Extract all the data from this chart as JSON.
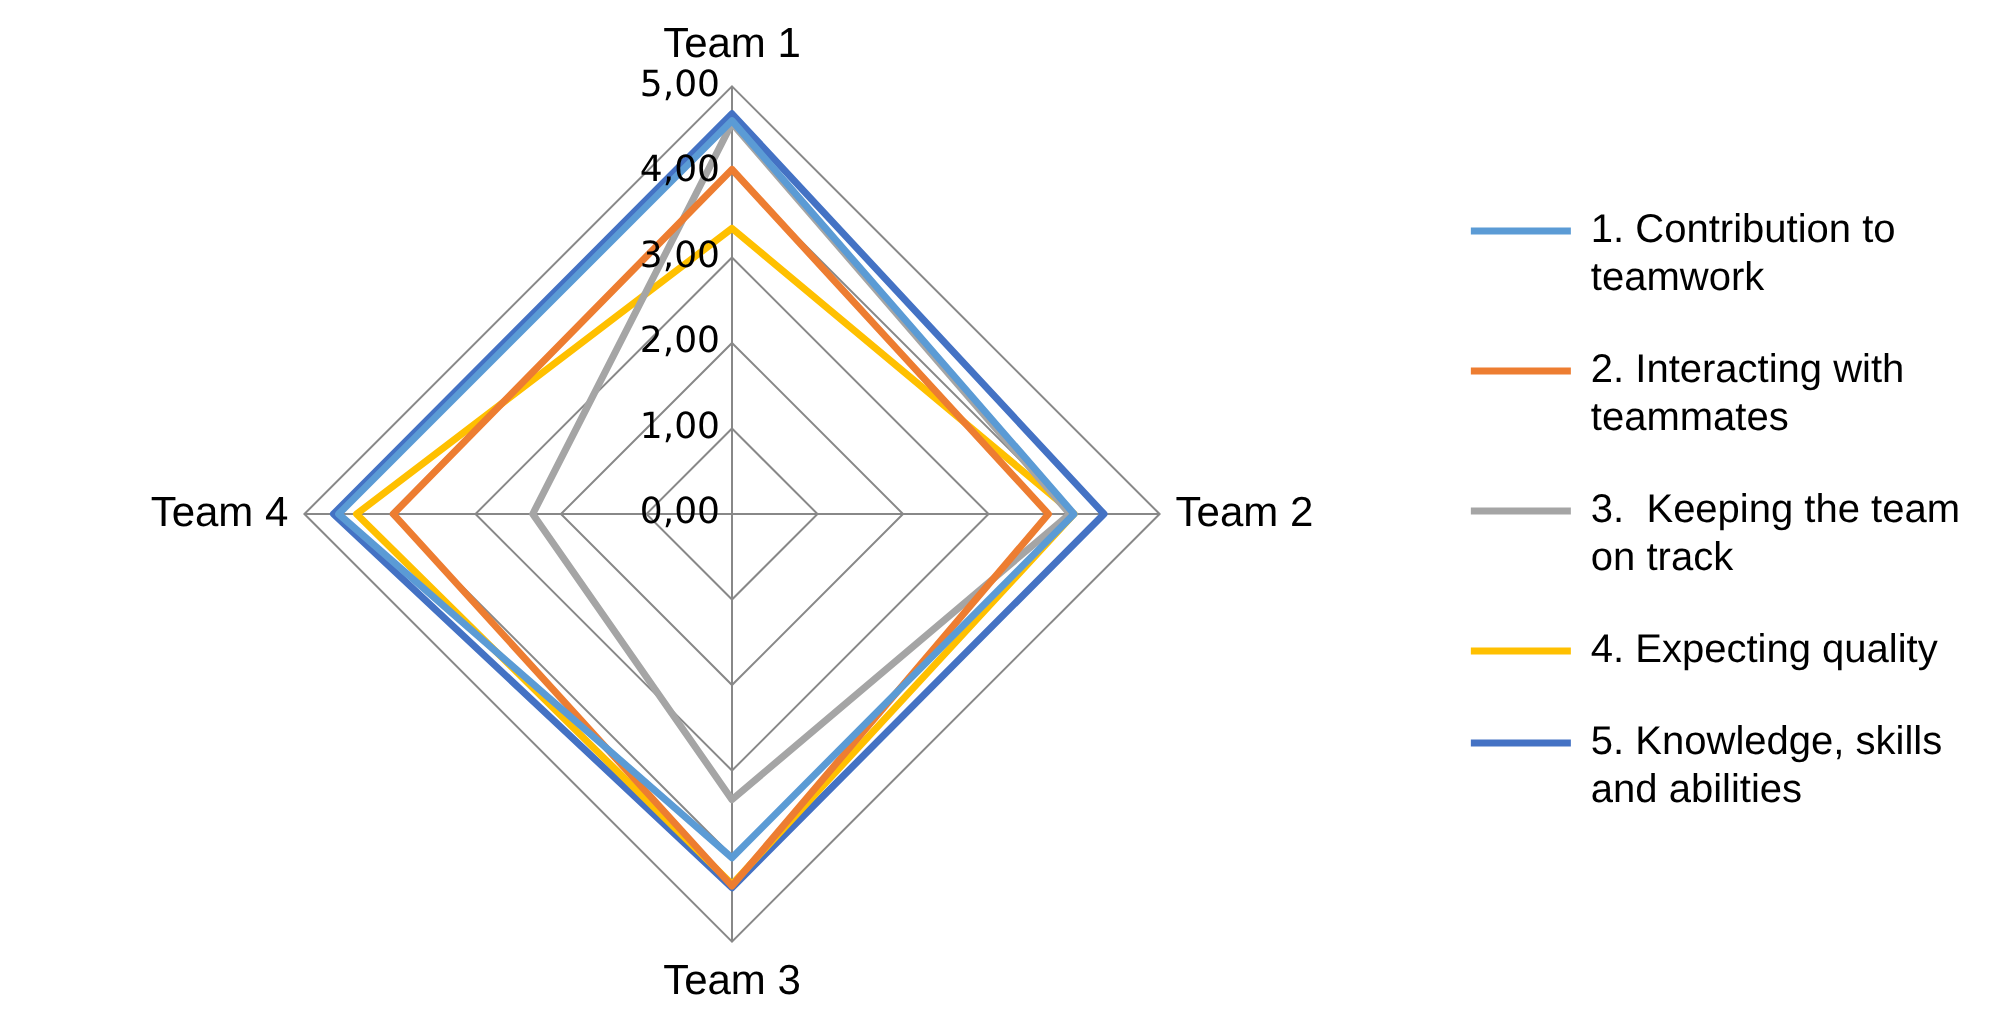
{
  "chart_data": {
    "type": "radar",
    "categories": [
      "Team 1",
      "Team 2",
      "Team 3",
      "Team 4"
    ],
    "series": [
      {
        "name": "1. Contribution to teamwork",
        "color": "#5b9bd5",
        "values": [
          4.6,
          4.0,
          4.02,
          4.6
        ]
      },
      {
        "name": "2. Interacting with teammates",
        "color": "#ed7d31",
        "values": [
          4.03,
          3.7,
          4.35,
          3.96
        ]
      },
      {
        "name": "3.  Keeping the team on track",
        "color": "#a5a5a5",
        "values": [
          4.57,
          3.95,
          3.34,
          2.33
        ]
      },
      {
        "name": "4. Expecting quality",
        "color": "#ffc000",
        "values": [
          3.34,
          4.0,
          4.33,
          4.39
        ]
      },
      {
        "name": "5. Knowledge, skills and abilities",
        "color": "#4472c4",
        "values": [
          4.68,
          4.35,
          4.37,
          4.66
        ]
      }
    ],
    "ylim": [
      0,
      5
    ],
    "yticks": [
      {
        "value": 0,
        "label": "0,00"
      },
      {
        "value": 1,
        "label": "1,00"
      },
      {
        "value": 2,
        "label": "2,00"
      },
      {
        "value": 3,
        "label": "3,00"
      },
      {
        "value": 4,
        "label": "4,00"
      },
      {
        "value": 5,
        "label": "5,00"
      }
    ],
    "grid": true,
    "legend": "right",
    "marker": "none",
    "line_style": "solid"
  }
}
